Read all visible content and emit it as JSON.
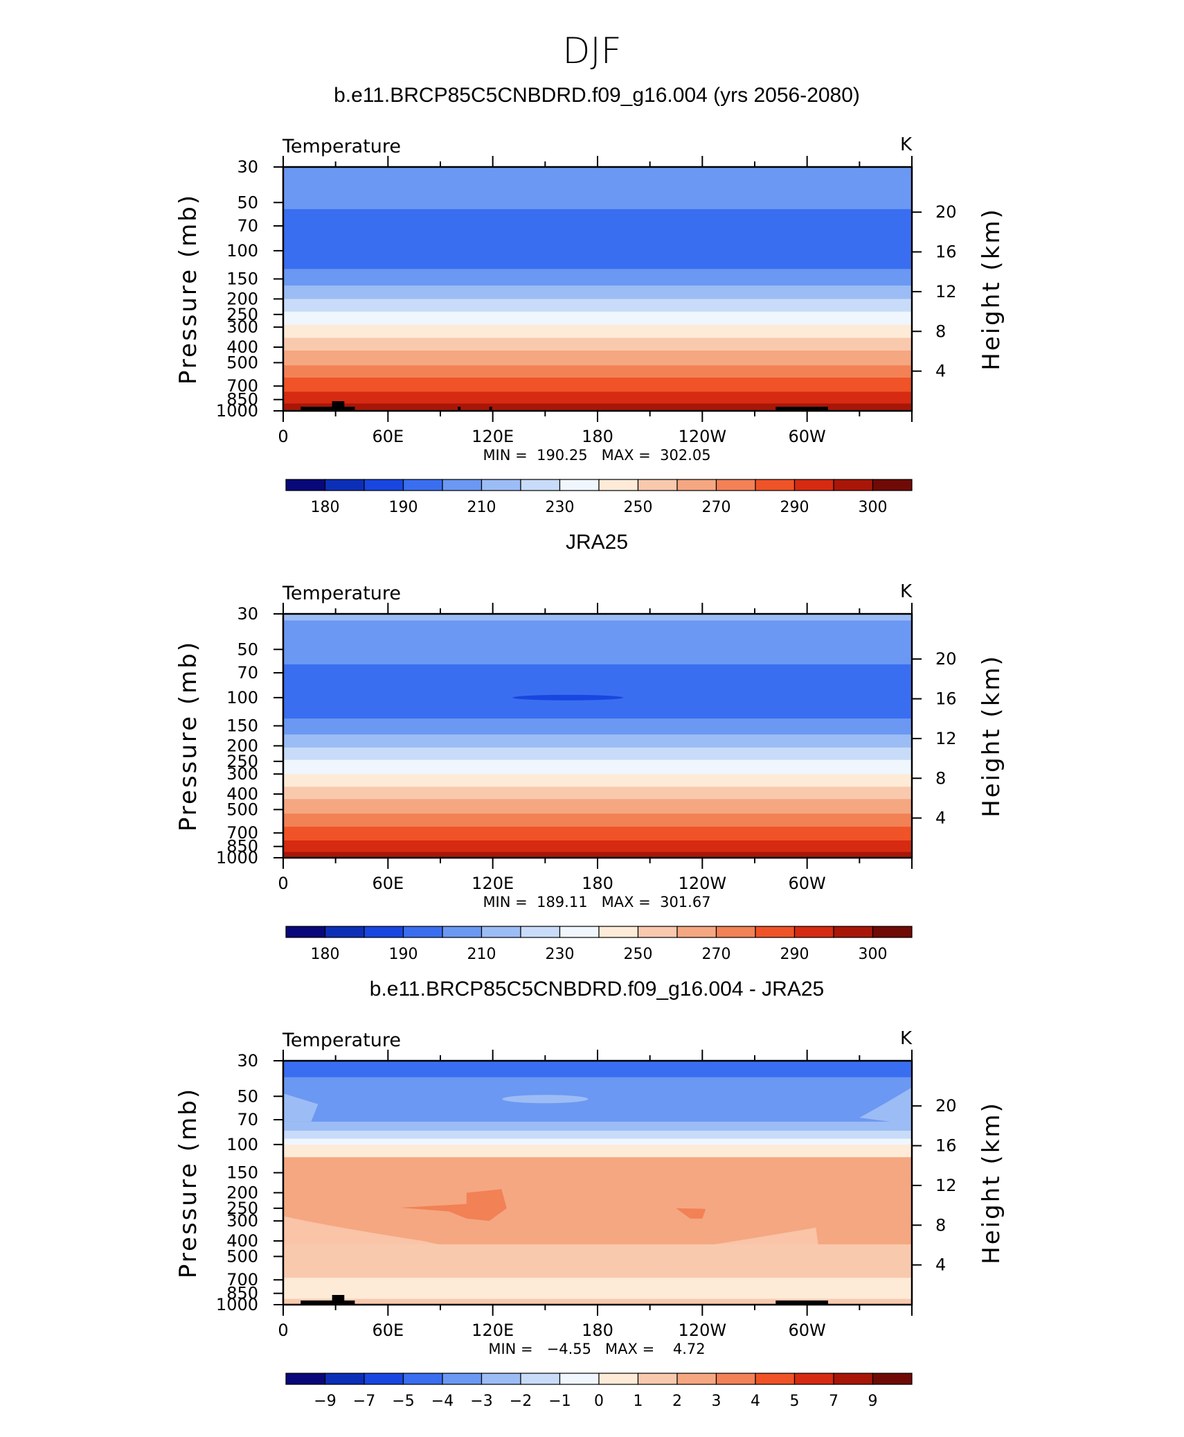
{
  "figure": {
    "title": "DJF"
  },
  "colors": {
    "temperature_palette": [
      "#08087a",
      "#0c2fb8",
      "#1846e0",
      "#3a6ef0",
      "#6b98f2",
      "#9cbcf5",
      "#c8dcf9",
      "#f0f6fd",
      "#fdebd8",
      "#f9c9ae",
      "#f5a781",
      "#f28156",
      "#ef5327",
      "#d62a12",
      "#a81608",
      "#700a06"
    ],
    "continent": "#000000"
  },
  "chart_data": [
    {
      "type": "heatmap",
      "panel_title": "b.e11.BRCP85C5CNBDRD.f09_g16.004 (yrs 2056-2080)",
      "variable": "Temperature",
      "units": "K",
      "ylabel": "Pressure (mb)",
      "ylabel_right": "Height (km)",
      "x_tick_labels": [
        "0",
        "60E",
        "120E",
        "180",
        "120W",
        "60W"
      ],
      "y_tick_labels": [
        "30",
        "50",
        "70",
        "100",
        "150",
        "200",
        "250",
        "300",
        "400",
        "500",
        "700",
        "850",
        "1000"
      ],
      "y_right_tick_labels": [
        "20",
        "16",
        "12",
        "8",
        "4"
      ],
      "min_max_label": "MIN =  190.25   MAX =  302.05",
      "min": 190.25,
      "max": 302.05,
      "colorbar_labels": [
        "180",
        "190",
        "210",
        "230",
        "250",
        "270",
        "290",
        "300"
      ],
      "level_profile": [
        {
          "p": 30,
          "level": 4
        },
        {
          "p": 45,
          "level": 4
        },
        {
          "p": 55,
          "level": 3
        },
        {
          "p": 110,
          "level": 3
        },
        {
          "p": 130,
          "level": 4
        },
        {
          "p": 165,
          "level": 5
        },
        {
          "p": 200,
          "level": 6
        },
        {
          "p": 240,
          "level": 7
        },
        {
          "p": 290,
          "level": 8
        },
        {
          "p": 350,
          "level": 9
        },
        {
          "p": 420,
          "level": 10
        },
        {
          "p": 520,
          "level": 11
        },
        {
          "p": 620,
          "level": 12
        },
        {
          "p": 760,
          "level": 13
        },
        {
          "p": 900,
          "level": 14
        },
        {
          "p": 1000,
          "level": 15
        }
      ],
      "topography": true
    },
    {
      "type": "heatmap",
      "panel_title": "JRA25",
      "variable": "Temperature",
      "units": "K",
      "ylabel": "Pressure (mb)",
      "ylabel_right": "Height (km)",
      "x_tick_labels": [
        "0",
        "60E",
        "120E",
        "180",
        "120W",
        "60W"
      ],
      "y_tick_labels": [
        "30",
        "50",
        "70",
        "100",
        "150",
        "200",
        "250",
        "300",
        "400",
        "500",
        "700",
        "850",
        "1000"
      ],
      "y_right_tick_labels": [
        "20",
        "16",
        "12",
        "8",
        "4"
      ],
      "min_max_label": "MIN =  189.11   MAX =  301.67",
      "min": 189.11,
      "max": 301.67,
      "colorbar_labels": [
        "180",
        "190",
        "210",
        "230",
        "250",
        "270",
        "290",
        "300"
      ],
      "level_profile": [
        {
          "p": 30,
          "level": 5
        },
        {
          "p": 33,
          "level": 4
        },
        {
          "p": 60,
          "level": 4
        },
        {
          "p": 62,
          "level": 3
        },
        {
          "p": 115,
          "level": 3
        },
        {
          "p": 135,
          "level": 4
        },
        {
          "p": 170,
          "level": 5
        },
        {
          "p": 205,
          "level": 6
        },
        {
          "p": 245,
          "level": 7
        },
        {
          "p": 300,
          "level": 8
        },
        {
          "p": 360,
          "level": 9
        },
        {
          "p": 430,
          "level": 10
        },
        {
          "p": 530,
          "level": 11
        },
        {
          "p": 640,
          "level": 12
        },
        {
          "p": 780,
          "level": 13
        },
        {
          "p": 920,
          "level": 14
        },
        {
          "p": 1000,
          "level": 14
        }
      ],
      "topography": false
    },
    {
      "type": "heatmap",
      "panel_title": "b.e11.BRCP85C5CNBDRD.f09_g16.004 - JRA25",
      "variable": "Temperature",
      "units": "K",
      "ylabel": "Pressure (mb)",
      "ylabel_right": "Height (km)",
      "x_tick_labels": [
        "0",
        "60E",
        "120E",
        "180",
        "120W",
        "60W"
      ],
      "y_tick_labels": [
        "30",
        "50",
        "70",
        "100",
        "150",
        "200",
        "250",
        "300",
        "400",
        "500",
        "700",
        "850",
        "1000"
      ],
      "y_right_tick_labels": [
        "20",
        "16",
        "12",
        "8",
        "4"
      ],
      "min_max_label": "MIN =   −4.55   MAX =    4.72",
      "min": -4.55,
      "max": 4.72,
      "colorbar_labels": [
        "−9",
        "−7",
        "−5",
        "−4",
        "−3",
        "−2",
        "−1",
        "0",
        "1",
        "2",
        "3",
        "4",
        "5",
        "7",
        "9"
      ],
      "level_profile": [
        {
          "p": 30,
          "level": 3
        },
        {
          "p": 38,
          "level": 4
        },
        {
          "p": 62,
          "level": 4
        },
        {
          "p": 72,
          "level": 5
        },
        {
          "p": 82,
          "level": 6
        },
        {
          "p": 92,
          "level": 7
        },
        {
          "p": 100,
          "level": 8
        },
        {
          "p": 120,
          "level": 10
        },
        {
          "p": 300,
          "level": 10
        },
        {
          "p": 420,
          "level": 9
        },
        {
          "p": 600,
          "level": 9
        },
        {
          "p": 680,
          "level": 8
        },
        {
          "p": 860,
          "level": 8
        },
        {
          "p": 920,
          "level": 9
        },
        {
          "p": 1000,
          "level": 9
        }
      ],
      "topography": true
    }
  ]
}
